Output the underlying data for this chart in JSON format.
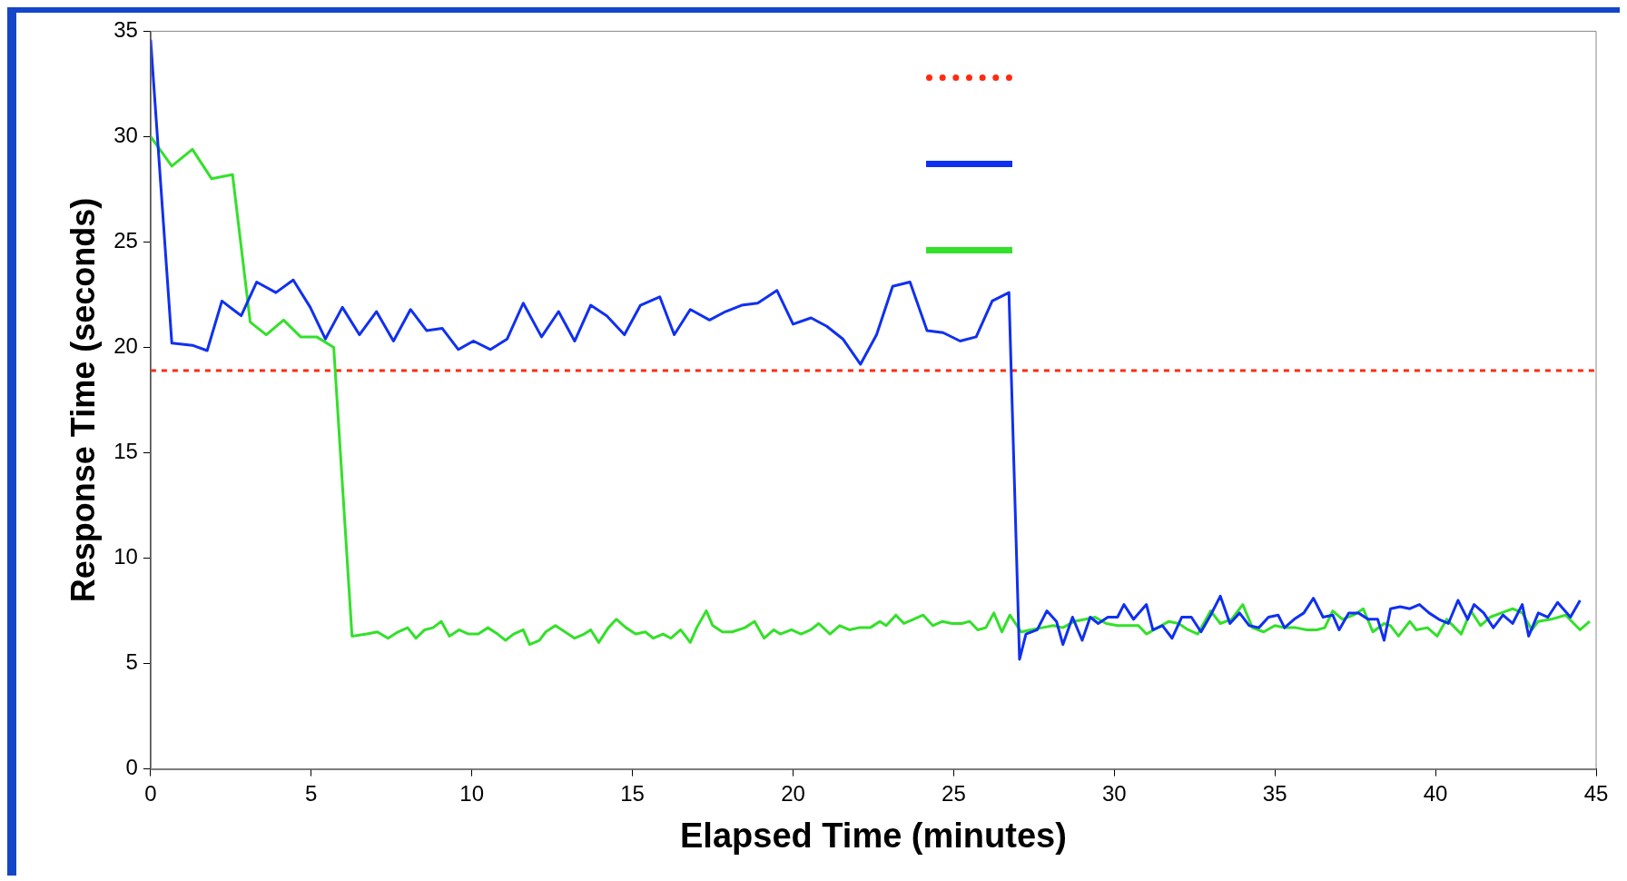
{
  "chart_data": {
    "type": "line",
    "xlabel": "Elapsed Time (minutes)",
    "ylabel": "Response Time (seconds)",
    "xlim": [
      0,
      45
    ],
    "xticks": [
      0,
      5,
      10,
      15,
      20,
      25,
      30,
      35,
      40,
      45
    ],
    "ylim": [
      0,
      35
    ],
    "yticks": [
      0,
      5,
      10,
      15,
      20,
      25,
      30,
      35
    ],
    "grid": false,
    "marker": "none",
    "line_style": "solid",
    "ref_lines": [
      {
        "axis": "y",
        "value": 18.9,
        "color": "#ff2a10",
        "line_style": "dotted"
      }
    ],
    "series": [
      {
        "color": "#1030f0",
        "x": [
          0,
          0.66,
          1.3,
          1.76,
          2.22,
          2.82,
          3.3,
          3.9,
          4.44,
          4.97,
          5.44,
          5.97,
          6.5,
          7.03,
          7.56,
          8.09,
          8.59,
          9.08,
          9.58,
          10.05,
          10.58,
          11.1,
          11.6,
          12.17,
          12.7,
          13.2,
          13.7,
          14.2,
          14.75,
          15.25,
          15.85,
          16.3,
          16.8,
          17.4,
          17.9,
          18.4,
          18.9,
          19.5,
          20,
          20.56,
          21.05,
          21.55,
          22.1,
          22.6,
          23.1,
          23.64,
          24.17,
          24.67,
          25.2,
          25.7,
          26.2,
          26.72,
          27.05,
          27.25,
          27.6,
          27.9,
          28.2,
          28.4,
          28.7,
          29,
          29.25,
          29.5,
          29.8,
          30.1,
          30.3,
          30.6,
          31,
          31.2,
          31.5,
          31.8,
          32.1,
          32.4,
          32.7,
          33,
          33.3,
          33.6,
          33.9,
          34.2,
          34.5,
          34.8,
          35.1,
          35.3,
          35.6,
          35.9,
          36.2,
          36.5,
          36.8,
          37,
          37.3,
          37.6,
          37.9,
          38.2,
          38.4,
          38.6,
          38.9,
          39.2,
          39.5,
          39.8,
          40.1,
          40.4,
          40.7,
          41,
          41.2,
          41.5,
          41.8,
          42.1,
          42.4,
          42.7,
          42.9,
          43.2,
          43.5,
          43.8,
          44.2,
          44.5
        ],
        "values": [
          34.6,
          20.2,
          20.1,
          19.85,
          22.2,
          21.5,
          23.1,
          22.6,
          23.2,
          21.9,
          20.4,
          21.9,
          20.6,
          21.7,
          20.3,
          21.8,
          20.8,
          20.9,
          19.9,
          20.3,
          19.9,
          20.4,
          22.1,
          20.5,
          21.7,
          20.3,
          22,
          21.5,
          20.6,
          22,
          22.4,
          20.6,
          21.8,
          21.3,
          21.7,
          22,
          22.1,
          22.7,
          21.1,
          21.4,
          21,
          20.4,
          19.2,
          20.6,
          22.9,
          23.1,
          20.8,
          20.7,
          20.3,
          20.5,
          22.2,
          22.6,
          5.2,
          6.4,
          6.6,
          7.5,
          7,
          5.9,
          7.2,
          6.1,
          7.2,
          6.9,
          7.2,
          7.2,
          7.8,
          7.1,
          7.8,
          6.6,
          6.8,
          6.2,
          7.2,
          7.2,
          6.5,
          7.3,
          8.2,
          6.9,
          7.4,
          6.8,
          6.7,
          7.2,
          7.3,
          6.7,
          7.1,
          7.4,
          8.1,
          7.2,
          7.3,
          6.6,
          7.4,
          7.4,
          7.1,
          7.1,
          6.1,
          7.6,
          7.7,
          7.6,
          7.8,
          7.4,
          7.1,
          6.9,
          8,
          7.1,
          7.8,
          7.4,
          6.7,
          7.3,
          6.9,
          7.8,
          6.3,
          7.4,
          7.2,
          7.9,
          7.2,
          8
        ]
      },
      {
        "color": "#33e02a",
        "x": [
          0,
          0.66,
          1.3,
          1.9,
          2.55,
          3.1,
          3.6,
          4.14,
          4.67,
          5.17,
          5.7,
          6.27,
          6.73,
          7.06,
          7.39,
          7.7,
          8,
          8.26,
          8.53,
          8.79,
          9.05,
          9.3,
          9.6,
          9.9,
          10.2,
          10.5,
          10.8,
          11.05,
          11.3,
          11.6,
          11.8,
          12.1,
          12.3,
          12.6,
          12.9,
          13.2,
          13.5,
          13.7,
          13.95,
          14.25,
          14.5,
          14.8,
          15.1,
          15.4,
          15.65,
          15.95,
          16.2,
          16.5,
          16.8,
          17,
          17.3,
          17.5,
          17.8,
          18.1,
          18.5,
          18.8,
          19.1,
          19.4,
          19.6,
          19.95,
          20.25,
          20.55,
          20.8,
          21.15,
          21.45,
          21.75,
          22.05,
          22.4,
          22.7,
          22.9,
          23.2,
          23.45,
          23.75,
          24.05,
          24.35,
          24.65,
          24.95,
          25.25,
          25.5,
          25.75,
          26,
          26.25,
          26.5,
          26.75,
          27.1,
          27.4,
          27.75,
          28.1,
          28.4,
          28.75,
          29.1,
          29.4,
          29.75,
          30.1,
          30.4,
          30.75,
          31,
          31.35,
          31.7,
          32,
          32.3,
          32.6,
          33,
          33.3,
          33.65,
          34,
          34.3,
          34.65,
          35,
          35.3,
          35.65,
          36,
          36.3,
          36.55,
          36.8,
          37.1,
          37.45,
          37.75,
          38.05,
          38.4,
          38.6,
          38.85,
          39.2,
          39.4,
          39.75,
          40.05,
          40.35,
          40.8,
          41.1,
          41.4,
          41.7,
          42.05,
          42.4,
          42.7,
          43,
          43.2,
          43.6,
          44.05,
          44.5,
          44.8
        ],
        "values": [
          30,
          28.6,
          29.4,
          28,
          28.2,
          21.2,
          20.6,
          21.3,
          20.5,
          20.5,
          20,
          6.3,
          6.4,
          6.5,
          6.2,
          6.5,
          6.7,
          6.2,
          6.6,
          6.7,
          7,
          6.3,
          6.6,
          6.4,
          6.4,
          6.7,
          6.4,
          6.1,
          6.4,
          6.6,
          5.9,
          6.1,
          6.5,
          6.8,
          6.5,
          6.2,
          6.4,
          6.6,
          6,
          6.7,
          7.1,
          6.7,
          6.4,
          6.5,
          6.2,
          6.4,
          6.2,
          6.6,
          6,
          6.7,
          7.5,
          6.8,
          6.5,
          6.5,
          6.7,
          7,
          6.2,
          6.6,
          6.4,
          6.6,
          6.4,
          6.6,
          6.9,
          6.4,
          6.8,
          6.6,
          6.7,
          6.7,
          7,
          6.8,
          7.3,
          6.9,
          7.1,
          7.3,
          6.8,
          7,
          6.9,
          6.9,
          7,
          6.6,
          6.7,
          7.4,
          6.5,
          7.3,
          6.5,
          6.6,
          6.7,
          6.8,
          6.7,
          7,
          7.1,
          7.2,
          6.9,
          6.8,
          6.8,
          6.8,
          6.4,
          6.7,
          7,
          6.9,
          6.6,
          6.4,
          7.5,
          6.9,
          7.1,
          7.8,
          6.7,
          6.5,
          6.8,
          6.7,
          6.7,
          6.6,
          6.6,
          6.7,
          7.5,
          7.1,
          7.3,
          7.6,
          6.5,
          6.9,
          6.8,
          6.3,
          7,
          6.6,
          6.7,
          6.3,
          7.1,
          6.4,
          7.5,
          6.8,
          7.2,
          7.4,
          7.6,
          7.4,
          6.6,
          7,
          7.1,
          7.3,
          6.6,
          7
        ]
      }
    ]
  }
}
